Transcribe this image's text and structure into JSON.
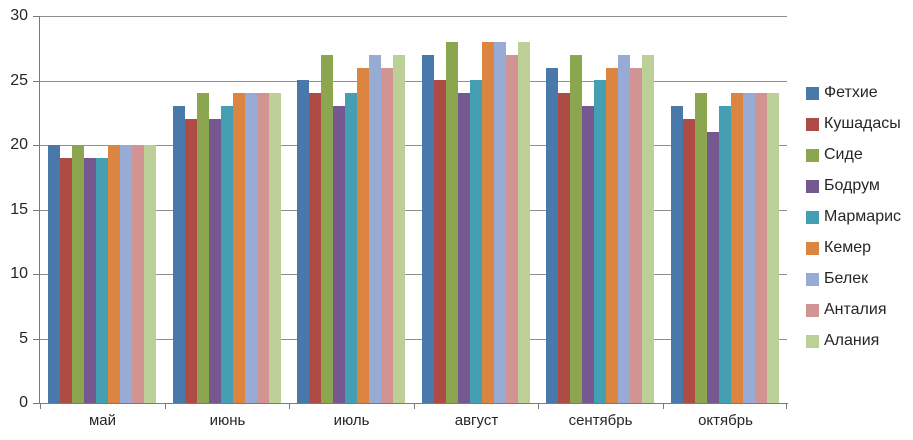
{
  "chart_data": {
    "type": "bar",
    "title": "",
    "xlabel": "",
    "ylabel": "",
    "categories": [
      "май",
      "июнь",
      "июль",
      "август",
      "сентябрь",
      "октябрь"
    ],
    "series": [
      {
        "name": "Фетхие",
        "color": "#4978AB",
        "values": [
          20,
          23,
          25,
          27,
          26,
          23
        ]
      },
      {
        "name": "Кушадасы",
        "color": "#AF4B45",
        "values": [
          19,
          22,
          24,
          25,
          24,
          22
        ]
      },
      {
        "name": "Сиде",
        "color": "#8CA650",
        "values": [
          20,
          24,
          27,
          28,
          27,
          24
        ]
      },
      {
        "name": "Бодрум",
        "color": "#74588F",
        "values": [
          19,
          22,
          23,
          24,
          23,
          21
        ]
      },
      {
        "name": "Мармарис",
        "color": "#449FB3",
        "values": [
          19,
          23,
          24,
          25,
          25,
          23
        ]
      },
      {
        "name": "Кемер",
        "color": "#DC8540",
        "values": [
          20,
          24,
          26,
          28,
          26,
          24
        ]
      },
      {
        "name": "Белек",
        "color": "#98ABD4",
        "values": [
          20,
          24,
          27,
          28,
          27,
          24
        ]
      },
      {
        "name": "Анталия",
        "color": "#D29492",
        "values": [
          20,
          24,
          26,
          27,
          26,
          24
        ]
      },
      {
        "name": "Алания",
        "color": "#BCCF97",
        "values": [
          20,
          24,
          27,
          28,
          27,
          24
        ]
      }
    ],
    "ylim": [
      0,
      30
    ],
    "yticks": [
      0,
      5,
      10,
      15,
      20,
      25,
      30
    ],
    "grid": true,
    "legend_position": "right"
  },
  "colors": {
    "background": "#ffffff",
    "gridline": "#8f8f8f",
    "axis": "#7a7a7a",
    "text": "#262626"
  }
}
